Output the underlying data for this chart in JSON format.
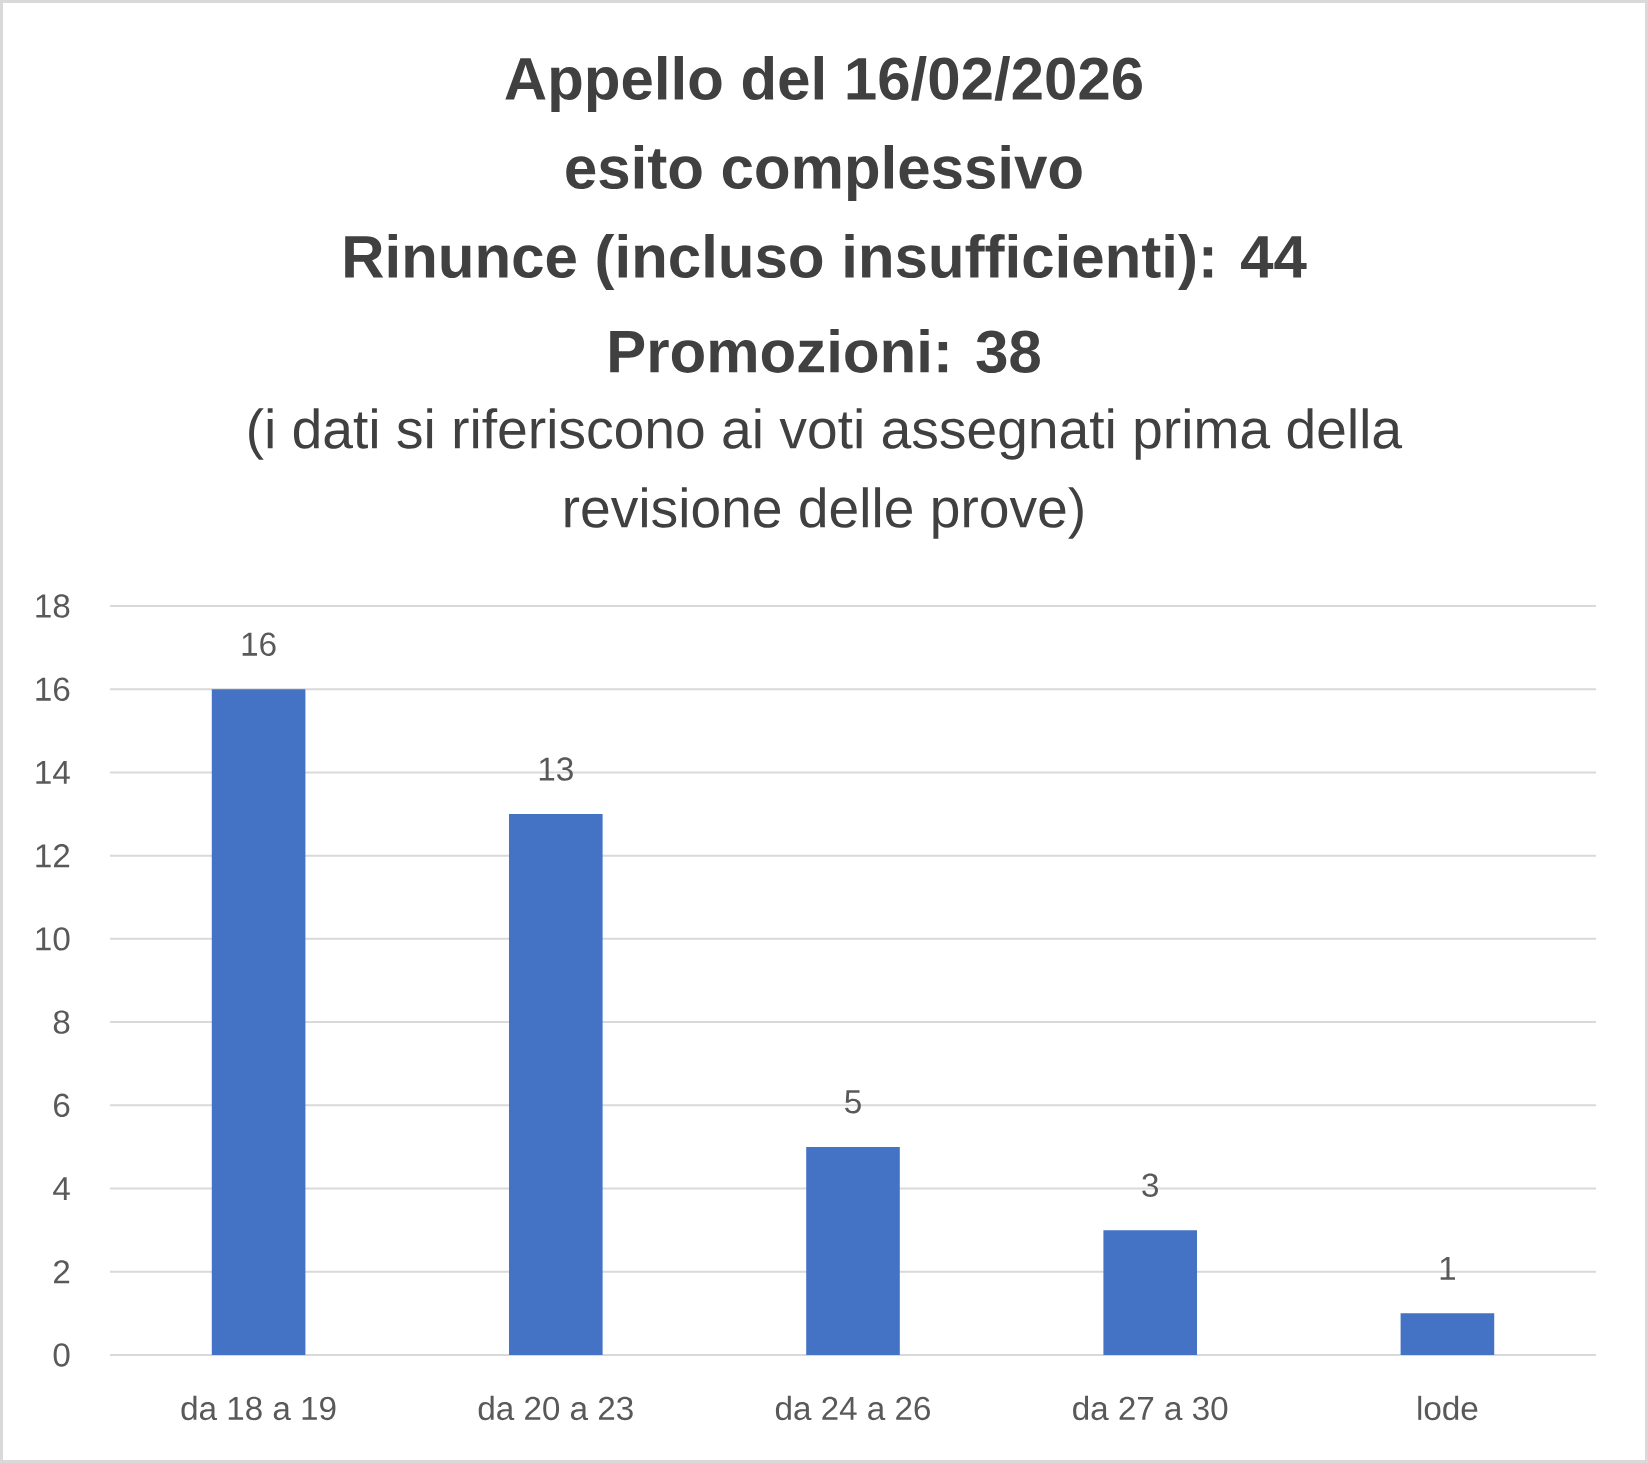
{
  "chart_data": {
    "type": "bar",
    "title": "Appello del 16/02/2026",
    "annotations": [
      "esito complessivo",
      "Rinunce (incluso insufficienti): 44",
      "Promozioni: 38"
    ],
    "subtitle": "(i dati si riferiscono ai voti assegnati prima della revisione delle prove)",
    "categories": [
      "da 18 a 19",
      "da 20 a 23",
      "da 24 a 26",
      "da 27 a 30",
      "lode"
    ],
    "values": [
      16,
      13,
      5,
      3,
      1
    ],
    "color": "#4472c4",
    "ylim": [
      0,
      18
    ],
    "yticks": [
      0,
      2,
      4,
      6,
      8,
      10,
      12,
      14,
      16,
      18
    ],
    "grid": "y",
    "data_labels": true
  }
}
